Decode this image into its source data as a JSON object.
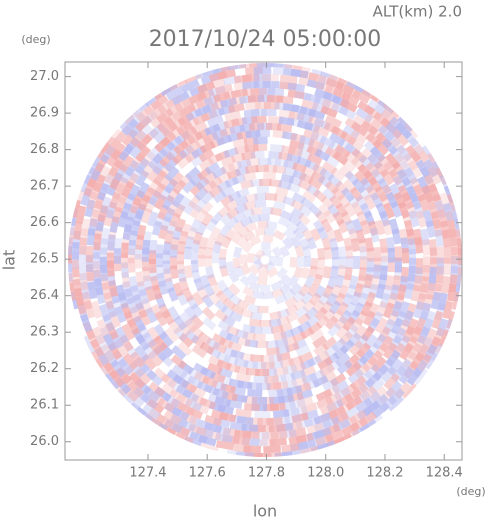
{
  "chart_data": {
    "type": "radar-image",
    "title": "2017/10/24 05:00:00",
    "annotation": "ALT(km) 2.0",
    "x_label": "lon",
    "y_label": "lat",
    "x_unit": "(deg)",
    "y_unit": "(deg)",
    "xlim": [
      127.12,
      128.46
    ],
    "ylim": [
      25.95,
      27.04
    ],
    "xticks": [
      127.4,
      127.6,
      127.8,
      {
        "value": 128,
        "label": "128.0"
      },
      128.2,
      128.4
    ],
    "yticks": [
      {
        "value": 26,
        "label": "26.0"
      },
      26.1,
      26.2,
      26.3,
      26.4,
      26.5,
      26.6,
      26.7,
      26.8,
      26.9,
      {
        "value": 27,
        "label": "27.0"
      }
    ]
  }
}
